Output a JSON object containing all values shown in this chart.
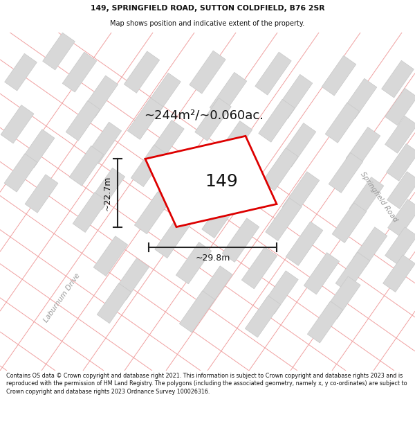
{
  "title_line1": "149, SPRINGFIELD ROAD, SUTTON COLDFIELD, B76 2SR",
  "title_line2": "Map shows position and indicative extent of the property.",
  "footer_text": "Contains OS data © Crown copyright and database right 2021. This information is subject to Crown copyright and database rights 2023 and is reproduced with the permission of HM Land Registry. The polygons (including the associated geometry, namely x, y co-ordinates) are subject to Crown copyright and database rights 2023 Ordnance Survey 100026316.",
  "area_label": "~244m²/~0.060ac.",
  "property_label": "149",
  "dim_width": "~29.8m",
  "dim_height": "~22.7m",
  "road_label_right": "Springfield Road",
  "road_label_diag": "Laburnum Drive",
  "map_bg": "#f7f7f7",
  "plot_border": "#dd0000",
  "plot_fill": "#ffffff",
  "road_line_color": "#f0a0a0",
  "building_fill": "#d8d8d8",
  "building_stroke": "#c8c8c8",
  "dim_line_color": "#222222",
  "title_color": "#111111",
  "road_label_color": "#999999"
}
